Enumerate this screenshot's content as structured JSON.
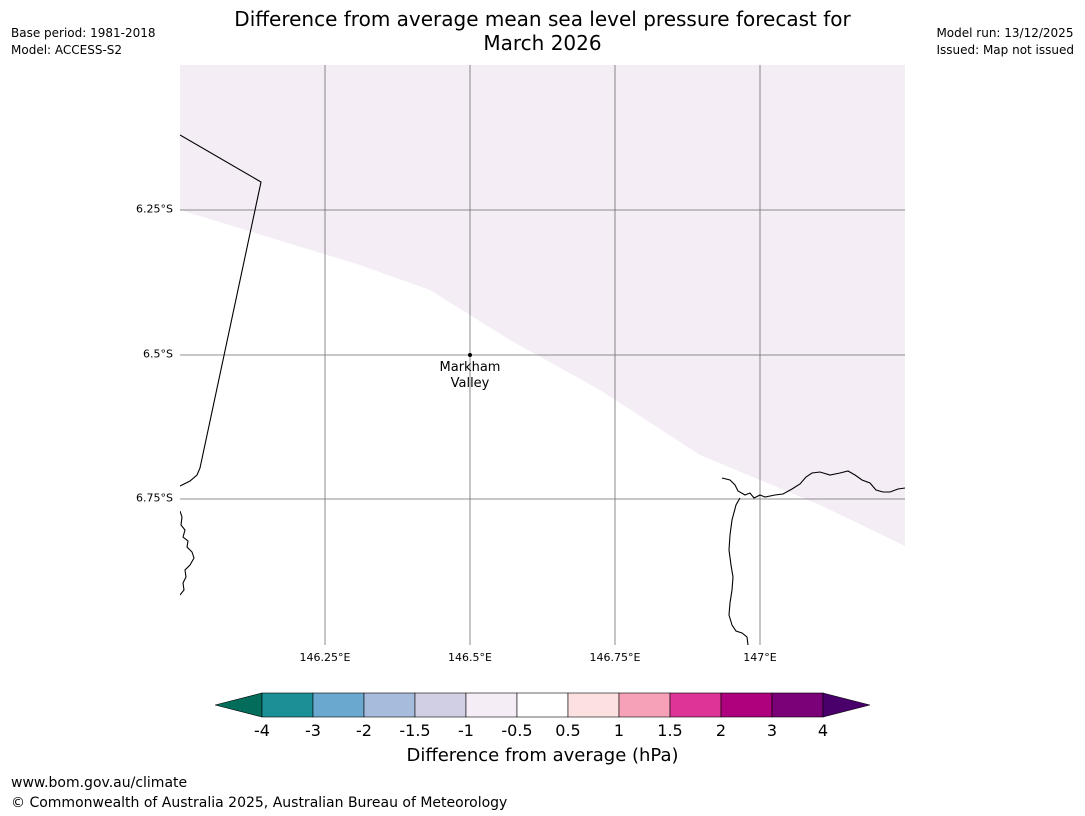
{
  "header": {
    "title_line1": "Difference from average mean sea level pressure forecast for",
    "title_line2": "March 2026",
    "base_period": "Base period: 1981-2018",
    "model": "Model: ACCESS-S2",
    "model_run": "Model run: 13/12/2025",
    "issued": "Issued: Map not issued"
  },
  "map": {
    "latitude_labels": [
      "6.25°S",
      "6.5°S",
      "6.75°S"
    ],
    "longitude_labels": [
      "146.25°E",
      "146.5°E",
      "146.75°E",
      "147°E"
    ],
    "place": {
      "name_line1": "Markham",
      "name_line2": "Valley"
    },
    "shading_color": "#f4edf5",
    "coast_color": "#000000",
    "grid_color": "#555555"
  },
  "colorbar": {
    "title": "Difference from average (hPa)",
    "tick_labels": [
      "-4",
      "-3",
      "-2",
      "-1.5",
      "-1",
      "-0.5",
      "0.5",
      "1",
      "1.5",
      "2",
      "3",
      "4"
    ],
    "colors": [
      "#1a9096",
      "#6aa8d0",
      "#a7bbdd",
      "#d1cfe4",
      "#f4edf5",
      "#ffffff",
      "#fde0e0",
      "#f7a1b8",
      "#dd3497",
      "#ae017e",
      "#7a0177"
    ],
    "low_extend_color": "#046c5a",
    "high_extend_color": "#49006a"
  },
  "footer": {
    "url": "www.bom.gov.au/climate",
    "copyright": "© Commonwealth of Australia 2025, Australian Bureau of Meteorology"
  }
}
